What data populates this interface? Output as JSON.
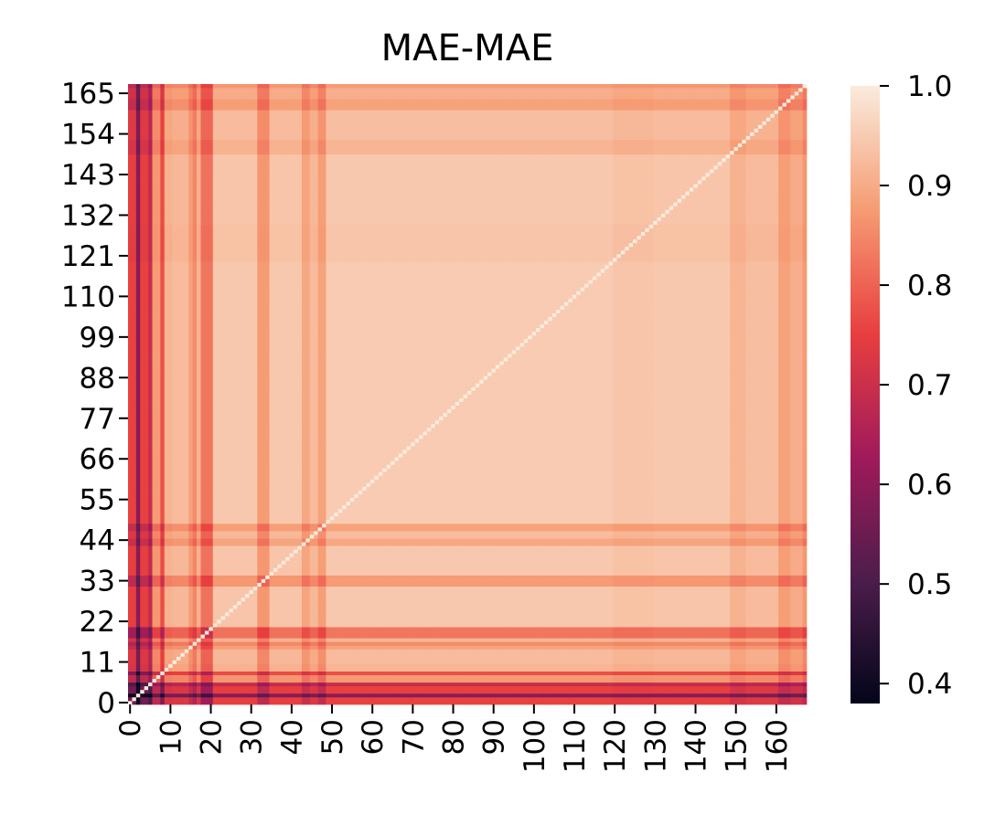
{
  "chart_data": {
    "type": "heatmap",
    "title": "MAE-MAE",
    "xlabel": "",
    "ylabel": "",
    "n": 168,
    "x_ticks": [
      0,
      10,
      20,
      30,
      40,
      50,
      60,
      70,
      80,
      90,
      100,
      110,
      120,
      130,
      140,
      150,
      160
    ],
    "y_ticks": [
      0,
      11,
      22,
      33,
      44,
      55,
      66,
      77,
      88,
      99,
      110,
      121,
      132,
      143,
      154,
      165
    ],
    "y_origin": "bottom",
    "colorbar": {
      "min": 0.38,
      "max": 1.0,
      "ticks": [
        0.4,
        0.5,
        0.6,
        0.7,
        0.8,
        0.9,
        1.0
      ],
      "tick_labels": [
        "0.4",
        "0.5",
        "0.6",
        "0.7",
        "0.8",
        "0.9",
        "1.0"
      ],
      "colormap": "rocket",
      "colors": [
        "#03051a",
        "#4c1d4b",
        "#a11a5b",
        "#e83f3f",
        "#f69c73",
        "#faebdd"
      ]
    },
    "value_model": {
      "description": "Symmetric similarity matrix; value(i,j) = 1 - weakness(i) - weakness(j) with diagonal = 1.0",
      "diagonal": 1.0,
      "row_weakness": [
        {
          "range": [
            0,
            5
          ],
          "weakness": 0.22
        },
        {
          "range": [
            2,
            2
          ],
          "weakness": 0.38
        },
        {
          "range": [
            5,
            5
          ],
          "weakness": 0.28
        },
        {
          "range": [
            6,
            7
          ],
          "weakness": 0.1
        },
        {
          "range": [
            8,
            8
          ],
          "weakness": 0.2
        },
        {
          "range": [
            9,
            10
          ],
          "weakness": 0.06
        },
        {
          "range": [
            11,
            14
          ],
          "weakness": 0.05
        },
        {
          "range": [
            15,
            15
          ],
          "weakness": 0.09
        },
        {
          "range": [
            16,
            16
          ],
          "weakness": 0.12
        },
        {
          "range": [
            17,
            17
          ],
          "weakness": 0.06
        },
        {
          "range": [
            18,
            20
          ],
          "weakness": 0.15
        },
        {
          "range": [
            21,
            31
          ],
          "weakness": 0.03
        },
        {
          "range": [
            32,
            34
          ],
          "weakness": 0.1
        },
        {
          "range": [
            35,
            42
          ],
          "weakness": 0.03
        },
        {
          "range": [
            43,
            44
          ],
          "weakness": 0.08
        },
        {
          "range": [
            45,
            46
          ],
          "weakness": 0.05
        },
        {
          "range": [
            47,
            48
          ],
          "weakness": 0.09
        },
        {
          "range": [
            49,
            119
          ],
          "weakness": 0.025
        },
        {
          "range": [
            120,
            129
          ],
          "weakness": 0.035
        },
        {
          "range": [
            130,
            148
          ],
          "weakness": 0.03
        },
        {
          "range": [
            149,
            152
          ],
          "weakness": 0.06
        },
        {
          "range": [
            153,
            160
          ],
          "weakness": 0.045
        },
        {
          "range": [
            161,
            163
          ],
          "weakness": 0.09
        },
        {
          "range": [
            164,
            166
          ],
          "weakness": 0.07
        },
        {
          "range": [
            167,
            167
          ],
          "weakness": 0.1
        }
      ]
    }
  }
}
